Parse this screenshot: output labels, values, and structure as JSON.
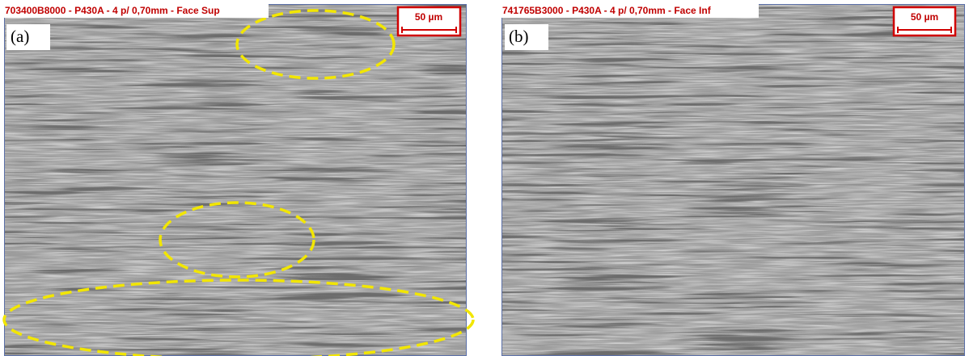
{
  "panels": [
    {
      "header": "703400B8000 - P430A - 4 p/ 0,70mm - Face Sup",
      "scale": "50 µm",
      "label": "(a)"
    },
    {
      "header": "741765B3000 - P430A - 4 p/ 0,70mm - Face Inf",
      "scale": "50 µm",
      "label": "(b)"
    }
  ]
}
